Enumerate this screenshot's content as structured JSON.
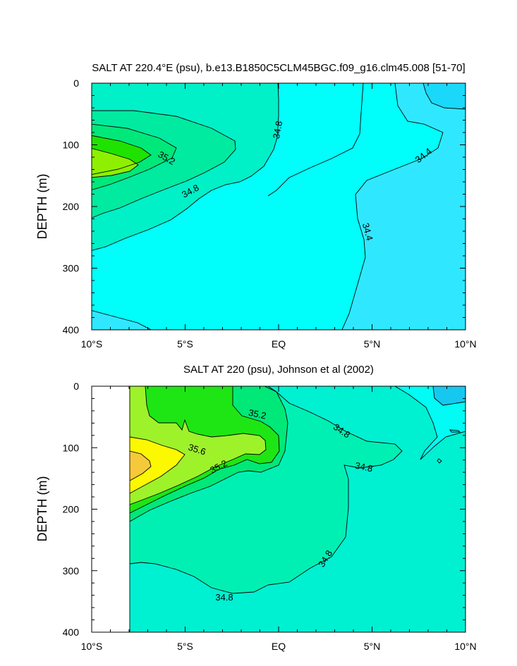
{
  "chart_data": [
    {
      "type": "contour",
      "title": "SALT AT 220.4°E (psu), b.e13.B1850C5CLM45BGC.f09_g16.clm45.008 [51-70]",
      "xlabel": "",
      "ylabel": "DEPTH (m)",
      "xlim": [
        -10,
        10
      ],
      "ylim": [
        400,
        0
      ],
      "xticks": [
        -10,
        -5,
        0,
        5,
        10
      ],
      "xtick_labels": [
        "10°S",
        "5°S",
        "EQ",
        "5°N",
        "10°N"
      ],
      "yticks": [
        0,
        100,
        200,
        300,
        400
      ],
      "ytick_labels": [
        "0",
        "100",
        "200",
        "300",
        "400"
      ],
      "contour_interval": 0.2,
      "levels": [
        {
          "name": "lt34.2",
          "color": "#1ad8fa"
        },
        {
          "name": "34.2-34.4",
          "color": "#2fe8ff"
        },
        {
          "name": "34.4-34.6",
          "color": "#00fffa"
        },
        {
          "name": "34.6-34.8",
          "color": "#00f0c8"
        },
        {
          "name": "34.8-35.0",
          "color": "#00eaa0"
        },
        {
          "name": "35.0-35.2",
          "color": "#00e87a"
        },
        {
          "name": "35.2-35.4",
          "color": "#20e200"
        },
        {
          "name": "35.4-35.6",
          "color": "#8ef000"
        }
      ],
      "contour_labels": [
        "35.2",
        "34.8",
        "34.8",
        "34.4",
        "34.4"
      ]
    },
    {
      "type": "contour",
      "title": "SALT AT 220 (psu), Johnson et al (2002)",
      "xlabel": "",
      "ylabel": "DEPTH (m)",
      "xlim": [
        -10,
        10
      ],
      "ylim": [
        400,
        0
      ],
      "data_xrange": [
        -8,
        10
      ],
      "data_yrange": [
        10,
        400
      ],
      "xticks": [
        -10,
        -5,
        0,
        5,
        10
      ],
      "xtick_labels": [
        "10°S",
        "5°S",
        "EQ",
        "5°N",
        "10°N"
      ],
      "yticks": [
        0,
        100,
        200,
        300,
        400
      ],
      "ytick_labels": [
        "0",
        "100",
        "200",
        "300",
        "400"
      ],
      "contour_interval": 0.2,
      "levels": [
        {
          "name": "34.2-34.4",
          "color": "#16c8f0"
        },
        {
          "name": "34.4-34.6",
          "color": "#00fcf4"
        },
        {
          "name": "34.6-34.8",
          "color": "#00f0d2"
        },
        {
          "name": "34.8-35.0",
          "color": "#00f0b4"
        },
        {
          "name": "35.0-35.2",
          "color": "#00e878"
        },
        {
          "name": "35.2-35.4",
          "color": "#1ee614"
        },
        {
          "name": "35.4-35.6",
          "color": "#9ef22a"
        },
        {
          "name": "35.6-35.8",
          "color": "#fcf800"
        },
        {
          "name": "gt35.8",
          "color": "#f5c93a"
        }
      ],
      "contour_labels": [
        "35.2",
        "35.6",
        "35.2",
        "34.8",
        "34.8",
        "34.8",
        "34.8"
      ]
    }
  ]
}
